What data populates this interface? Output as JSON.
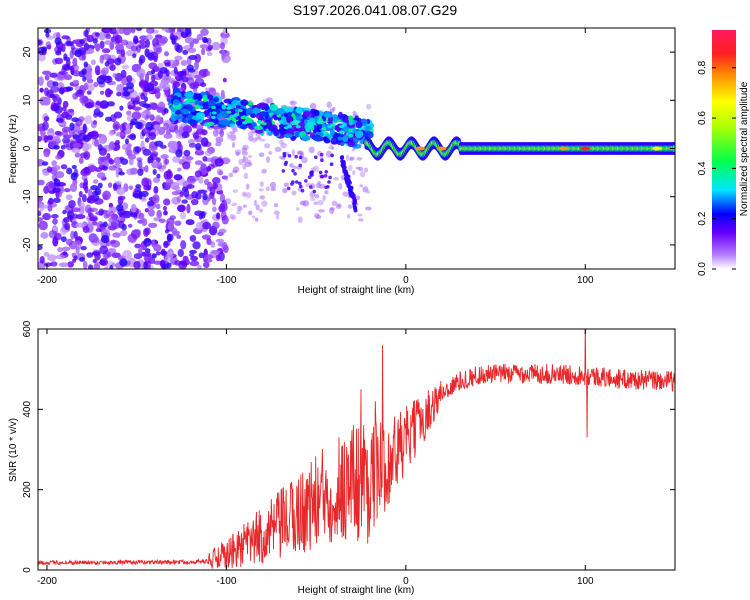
{
  "title": "S197.2026.041.08.07.G29",
  "chart_data": [
    {
      "type": "heatmap",
      "name": "spectrogram",
      "xlabel": "Height of straight line (km)",
      "ylabel": "Frequency (Hz)",
      "xlim": [
        -205,
        150
      ],
      "ylim": [
        -25,
        25
      ],
      "xticks": [
        -200,
        -100,
        0,
        100
      ],
      "yticks": [
        -20,
        -10,
        0,
        10,
        20
      ],
      "colorbar": {
        "label": "Normalized spectral amplitude",
        "range": [
          0,
          0.95
        ],
        "ticks": [
          0.0,
          0.2,
          0.4,
          0.6,
          0.8
        ]
      },
      "features": [
        {
          "region": "noise",
          "x_range": [
            -205,
            -100
          ],
          "freq_range": [
            -25,
            25
          ],
          "amplitude": 0.1
        },
        {
          "region": "fading_signal",
          "x_range": [
            -130,
            -20
          ],
          "freq_center": [
            10,
            3
          ],
          "amplitude": 0.3
        },
        {
          "region": "tail",
          "x_range": [
            -35,
            -27
          ],
          "freq_center": [
            -3,
            -12
          ],
          "amplitude": 0.15
        },
        {
          "region": "stable_tone",
          "x_range": [
            -20,
            150
          ],
          "freq_center": [
            0,
            0
          ],
          "amplitude": 0.5,
          "peaks": [
            [
              8,
              0.8
            ],
            [
              20,
              0.8
            ],
            [
              88,
              0.8
            ],
            [
              100,
              0.9
            ],
            [
              140,
              0.7
            ]
          ]
        }
      ]
    },
    {
      "type": "line",
      "name": "snr",
      "xlabel": "Height of straight line (km)",
      "ylabel": "SNR (10 * v/v)",
      "xlim": [
        -205,
        150
      ],
      "ylim": [
        0,
        600
      ],
      "xticks": [
        -200,
        -100,
        0,
        100
      ],
      "yticks": [
        0,
        200,
        400,
        600
      ],
      "color": "#e8272a",
      "trend": [
        [
          -205,
          18
        ],
        [
          -120,
          20
        ],
        [
          -110,
          22
        ],
        [
          -100,
          35
        ],
        [
          -90,
          60
        ],
        [
          -80,
          85
        ],
        [
          -70,
          110
        ],
        [
          -60,
          140
        ],
        [
          -50,
          170
        ],
        [
          -40,
          200
        ],
        [
          -30,
          220
        ],
        [
          -20,
          230
        ],
        [
          -10,
          270
        ],
        [
          0,
          320
        ],
        [
          10,
          380
        ],
        [
          20,
          440
        ],
        [
          30,
          470
        ],
        [
          40,
          485
        ],
        [
          60,
          490
        ],
        [
          80,
          488
        ],
        [
          100,
          485
        ],
        [
          120,
          475
        ],
        [
          150,
          470
        ]
      ],
      "spikes": [
        [
          -13,
          560
        ],
        [
          -17,
          420
        ],
        [
          -25,
          450
        ],
        [
          100,
          620
        ],
        [
          101,
          330
        ]
      ]
    }
  ]
}
